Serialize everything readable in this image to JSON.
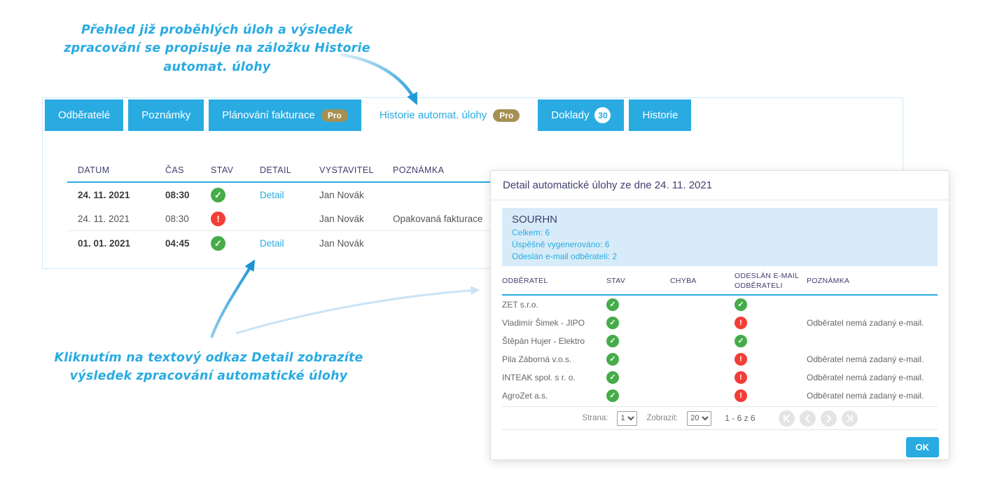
{
  "annotations": {
    "top": "Přehled již proběhlých úloh a výsledek\nzpracování se propisuje na záložku Historie\nautomat. úlohy",
    "bottom": "Kliknutím na textový odkaz Detail zobrazíte\nvýsledek zpracování automatické úlohy"
  },
  "colors": {
    "accent": "#29ABE2",
    "navy": "#3F3F6E",
    "pro_gold": "#A69053",
    "success_green": "#45AC49",
    "error_red": "#F23E36",
    "summary_bg": "#D7ECF8"
  },
  "icons": {
    "status_success": "check-circle",
    "status_error": "exclamation-circle",
    "pagination": [
      "first-page",
      "prev-page",
      "next-page",
      "last-page"
    ],
    "select_caret": "chevron-down"
  },
  "tabs": [
    {
      "label": "Odběratelé",
      "active": false
    },
    {
      "label": "Poznámky",
      "active": false
    },
    {
      "label": "Plánování fakturace",
      "badge": "Pro",
      "active": false
    },
    {
      "label": "Historie automat. úlohy",
      "badge": "Pro",
      "active": true
    },
    {
      "label": "Doklady",
      "count": "30",
      "active": false
    },
    {
      "label": "Historie",
      "active": false
    }
  ],
  "history_table": {
    "headers": [
      "DATUM",
      "ČAS",
      "STAV",
      "DETAIL",
      "VYSTAVITEL",
      "POZNÁMKA"
    ],
    "rows": [
      {
        "datum": "24. 11. 2021",
        "cas": "08:30",
        "stav": "success",
        "detail": "Detail",
        "vystavitel": "Jan Novák",
        "poznamka": "",
        "bold": true,
        "sep": false
      },
      {
        "datum": "24. 11. 2021",
        "cas": "08:30",
        "stav": "error",
        "detail": "",
        "vystavitel": "Jan Novák",
        "poznamka": "Opakovaná fakturace",
        "bold": false,
        "sep": false
      },
      {
        "datum": "01. 01. 2021",
        "cas": "04:45",
        "stav": "success",
        "detail": "Detail",
        "vystavitel": "Jan Novák",
        "poznamka": "",
        "bold": true,
        "sep": true
      }
    ]
  },
  "modal": {
    "title": "Detail automatické úlohy ze dne 24. 11. 2021",
    "summary": {
      "title": "SOURHN",
      "lines": [
        "Celkem: 6",
        "Úspěšně vygenerováno: 6",
        "Odeslán e-mail odběrateli: 2"
      ]
    },
    "table": {
      "headers": [
        "ODBĚRATEL",
        "STAV",
        "CHYBA",
        "ODESLÁN E-MAIL ODBĚRATELI",
        "POZNÁMKA"
      ],
      "rows": [
        {
          "odberatel": "ZET s.r.o.",
          "stav": "success",
          "chyba": "",
          "email": "success",
          "poznamka": ""
        },
        {
          "odberatel": "Vladimír Šimek - JIPO",
          "stav": "success",
          "chyba": "",
          "email": "error",
          "poznamka": "Odběratel nemá zadaný e-mail."
        },
        {
          "odberatel": "Štěpán Hujer - Elektro",
          "stav": "success",
          "chyba": "",
          "email": "success",
          "poznamka": ""
        },
        {
          "odberatel": "Pila Záborná v.o.s.",
          "stav": "success",
          "chyba": "",
          "email": "error",
          "poznamka": "Odběratel nemá zadaný e-mail."
        },
        {
          "odberatel": "INTEAK spol. s r. o.",
          "stav": "success",
          "chyba": "",
          "email": "error",
          "poznamka": "Odběratel nemá zadaný e-mail."
        },
        {
          "odberatel": "AgroZet a.s.",
          "stav": "success",
          "chyba": "",
          "email": "error",
          "poznamka": "Odběratel nemá zadaný e-mail."
        }
      ]
    },
    "pagination": {
      "page_label": "Strana:",
      "page_value": "1",
      "show_label": "Zobrazit:",
      "show_value": "20",
      "range": "1 - 6 z 6"
    },
    "ok_label": "OK"
  }
}
